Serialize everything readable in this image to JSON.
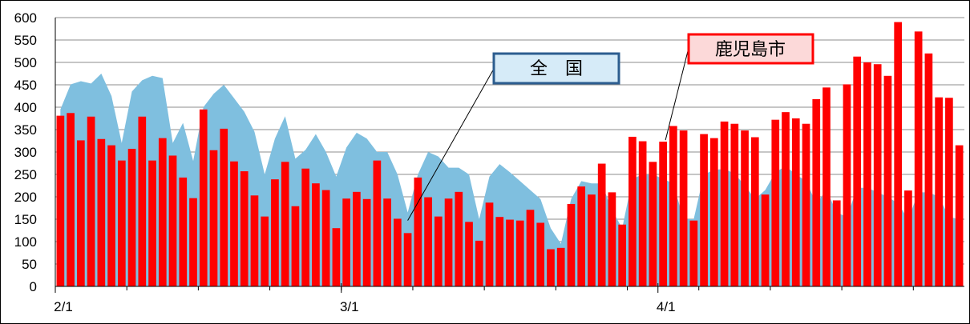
{
  "chart_data": {
    "type": "bar",
    "title": "",
    "xlabel": "",
    "ylabel": "",
    "ylim": [
      0,
      600
    ],
    "yticks": [
      0,
      50,
      100,
      150,
      200,
      250,
      300,
      350,
      400,
      450,
      500,
      550,
      600
    ],
    "xticks": [
      "2/1",
      "3/1",
      "4/1"
    ],
    "grid": true,
    "series": [
      {
        "name": "鹿児島市",
        "type": "bar",
        "color": "#ff0000",
        "values": [
          381,
          387,
          326,
          379,
          329,
          315,
          281,
          307,
          379,
          281,
          331,
          292,
          243,
          197,
          395,
          304,
          352,
          279,
          257,
          203,
          156,
          239,
          278,
          179,
          263,
          230,
          215,
          130,
          196,
          211,
          195,
          281,
          196,
          151,
          119,
          243,
          199,
          156,
          196,
          211,
          144,
          102,
          187,
          155,
          149,
          147,
          171,
          142,
          83,
          86,
          184,
          223,
          205,
          274,
          210,
          138,
          334,
          324,
          278,
          323,
          358,
          348,
          147,
          340,
          331,
          368,
          363,
          348,
          333,
          205,
          372,
          389,
          375,
          363,
          418,
          444,
          192,
          451,
          513,
          500,
          496,
          470,
          590,
          214,
          569,
          520,
          422,
          421,
          315
        ]
      },
      {
        "name": "全 国",
        "type": "area",
        "color": "#7fbfdf",
        "values": [
          395,
          451,
          458,
          453,
          475,
          425,
          320,
          435,
          460,
          470,
          465,
          320,
          365,
          280,
          400,
          430,
          450,
          420,
          390,
          345,
          250,
          330,
          380,
          285,
          305,
          340,
          300,
          245,
          310,
          343,
          330,
          300,
          300,
          250,
          165,
          250,
          300,
          290,
          265,
          265,
          250,
          150,
          245,
          273,
          255,
          235,
          215,
          195,
          130,
          95,
          195,
          235,
          230,
          230,
          170,
          130,
          240,
          250,
          250,
          240,
          230,
          150,
          150,
          250,
          260,
          262,
          252,
          225,
          195,
          215,
          255,
          268,
          250,
          235,
          185,
          215,
          165,
          155,
          220,
          220,
          210,
          200,
          185,
          150,
          210,
          210,
          200,
          155,
          150
        ]
      }
    ],
    "annotations": [
      {
        "text": "全　国",
        "target_series": "全 国"
      },
      {
        "text": "鹿児島市",
        "target_series": "鹿児島市"
      }
    ]
  }
}
